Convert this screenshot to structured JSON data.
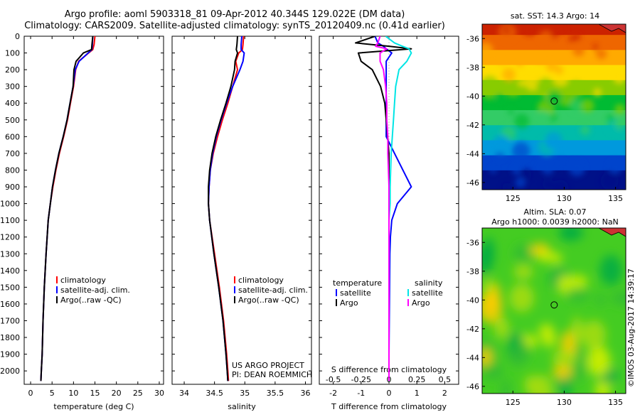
{
  "title": {
    "line1": "Argo profile: aoml 5903318_81 09-Apr-2012 40.344S 129.022E (DM data)",
    "line2": "Climatology: CARS2009. Satellite-adjusted climatology: synTS_20120409.nc (0.41d earlier)"
  },
  "chart_data": [
    {
      "type": "line",
      "name": "temperature-profile",
      "xlabel": "temperature (deg C)",
      "ylabel": "",
      "xlim": [
        -1.5,
        31
      ],
      "ylim": [
        2080,
        0
      ],
      "xticks": [
        0,
        5,
        10,
        15,
        20,
        25,
        30
      ],
      "xtick_labels": [
        "0",
        "5",
        "10",
        "15",
        "20",
        "25",
        "30"
      ],
      "yticks": [
        0,
        100,
        200,
        300,
        400,
        500,
        600,
        700,
        800,
        900,
        1000,
        1100,
        1200,
        1300,
        1400,
        1500,
        1600,
        1700,
        1800,
        1900,
        2000
      ],
      "ytick_labels": [
        "0",
        "100",
        "200",
        "300",
        "400",
        "500",
        "600",
        "700",
        "800",
        "900",
        "1000",
        "1100",
        "1200",
        "1300",
        "1400",
        "1500",
        "1600",
        "1700",
        "1800",
        "1900",
        "2000"
      ],
      "legend": [
        "climatology",
        "satellite-adj. clim.",
        "Argo(..raw -QC)"
      ],
      "legend_colors": [
        "#ff0000",
        "#0000ff",
        "#000000"
      ],
      "series": [
        {
          "name": "climatology",
          "color": "#ff0000",
          "x": [
            15.0,
            14.8,
            14.5,
            13.5,
            11.2,
            10.5,
            10.0,
            9.3,
            8.6,
            7.7,
            6.7,
            5.9,
            5.2,
            4.6,
            4.1,
            3.6,
            3.2,
            2.9,
            2.7,
            2.5,
            2.4
          ],
          "y": [
            0,
            50,
            80,
            100,
            150,
            200,
            300,
            400,
            500,
            600,
            700,
            800,
            900,
            1000,
            1100,
            1300,
            1500,
            1700,
            1900,
            2000,
            2060
          ]
        },
        {
          "name": "satellite-adj. clim.",
          "color": "#0000ff",
          "x": [
            14.5,
            14.4,
            14.3,
            13.4,
            11.3,
            10.4,
            9.9,
            9.2,
            8.5,
            7.6,
            6.6,
            5.8,
            5.1,
            4.6,
            4.1,
            3.6,
            3.2,
            2.9,
            2.7,
            2.5,
            2.4
          ],
          "y": [
            0,
            50,
            80,
            100,
            150,
            200,
            300,
            400,
            500,
            600,
            700,
            800,
            900,
            1000,
            1100,
            1300,
            1500,
            1700,
            1900,
            2000,
            2060
          ]
        },
        {
          "name": "Argo",
          "color": "#000000",
          "x": [
            14.5,
            14.3,
            14.2,
            12.3,
            10.6,
            10.1,
            9.9,
            9.2,
            8.5,
            7.6,
            6.6,
            5.8,
            5.1,
            4.6,
            4.1,
            3.6,
            3.2,
            2.9,
            2.7,
            2.5,
            2.4
          ],
          "y": [
            0,
            50,
            80,
            100,
            150,
            200,
            300,
            400,
            500,
            600,
            700,
            800,
            900,
            1000,
            1100,
            1300,
            1500,
            1700,
            1900,
            2000,
            2060
          ]
        }
      ]
    },
    {
      "type": "line",
      "name": "salinity-profile",
      "xlabel": "salinity",
      "ylabel": "",
      "xlim": [
        33.8,
        36.1
      ],
      "ylim": [
        2080,
        0
      ],
      "xticks": [
        34,
        34.5,
        35,
        35.5,
        36
      ],
      "xtick_labels": [
        "34",
        "34.5",
        "35",
        "35.5",
        "36"
      ],
      "legend": [
        "climatology",
        "satellite-adj. clim.",
        "Argo(..raw -QC)"
      ],
      "legend_colors": [
        "#ff0000",
        "#0000ff",
        "#000000"
      ],
      "annotation": [
        "US ARGO PROJECT",
        "PI: DEAN ROEMMICH"
      ],
      "series": [
        {
          "name": "climatology",
          "color": "#ff0000",
          "x": [
            34.98,
            34.97,
            34.96,
            34.9,
            34.85,
            34.88,
            34.8,
            34.72,
            34.63,
            34.55,
            34.48,
            34.43,
            34.41,
            34.4,
            34.42,
            34.5,
            34.58,
            34.65,
            34.7,
            34.72,
            34.73
          ],
          "y": [
            0,
            50,
            80,
            100,
            150,
            200,
            300,
            400,
            500,
            600,
            700,
            800,
            900,
            1000,
            1100,
            1300,
            1500,
            1700,
            1900,
            2000,
            2060
          ]
        },
        {
          "name": "satellite-adj. clim.",
          "color": "#0000ff",
          "x": [
            34.95,
            34.94,
            34.94,
            34.99,
            34.97,
            34.92,
            34.8,
            34.7,
            34.61,
            34.53,
            34.47,
            34.43,
            34.41,
            34.4,
            34.42,
            34.49,
            34.57,
            34.64,
            34.69,
            34.71,
            34.72
          ],
          "y": [
            0,
            50,
            80,
            100,
            150,
            200,
            300,
            400,
            500,
            600,
            700,
            800,
            900,
            1000,
            1100,
            1300,
            1500,
            1700,
            1900,
            2000,
            2060
          ]
        },
        {
          "name": "Argo",
          "color": "#000000",
          "x": [
            34.88,
            34.87,
            34.86,
            34.88,
            34.84,
            34.83,
            34.77,
            34.69,
            34.6,
            34.52,
            34.46,
            34.42,
            34.4,
            34.4,
            34.42,
            34.49,
            34.57,
            34.64,
            34.69,
            34.71,
            34.72
          ],
          "y": [
            0,
            50,
            80,
            100,
            150,
            200,
            300,
            400,
            500,
            600,
            700,
            800,
            900,
            1000,
            1100,
            1300,
            1500,
            1700,
            1900,
            2000,
            2060
          ]
        }
      ]
    },
    {
      "type": "line",
      "name": "difference-profile",
      "xlabel": "T difference from climatology",
      "xlabel_top": "S difference from climatology",
      "xlim": [
        -2.5,
        2.5
      ],
      "ylim": [
        2080,
        0
      ],
      "xticks": [
        -2,
        -1,
        0,
        1,
        2
      ],
      "xtick_labels": [
        "-2",
        "-1",
        "0",
        "1",
        "2"
      ],
      "s_ticks": [
        -0.5,
        -0.25,
        0,
        0.25,
        0.5
      ],
      "s_tick_labels": [
        "-0.5",
        "-0.25",
        "0",
        "0.25",
        "0.5"
      ],
      "legend_left_title": "temperature",
      "legend_right_title": "salinity",
      "legend_left": [
        "satellite",
        "Argo"
      ],
      "legend_left_colors": [
        "#0000ff",
        "#000000"
      ],
      "legend_right": [
        "satellite",
        "Argo"
      ],
      "legend_right_colors": [
        "#00e5e5",
        "#ff00ff"
      ],
      "series": [
        {
          "name": "T satellite",
          "color": "#0000ff",
          "x": [
            -0.5,
            -0.4,
            -0.2,
            -0.1,
            0.1,
            -0.1,
            -0.1,
            -0.1,
            -0.1,
            -0.1,
            -0.1,
            0.2,
            0.8,
            0.3,
            0.1,
            0.05,
            0.03,
            0.02,
            0.01,
            0,
            0
          ],
          "y": [
            0,
            40,
            60,
            75,
            100,
            150,
            200,
            300,
            400,
            500,
            600,
            700,
            900,
            1000,
            1100,
            1200,
            1300,
            1500,
            1700,
            1900,
            2060
          ]
        },
        {
          "name": "T Argo",
          "color": "#000000",
          "x": [
            -0.5,
            -1.2,
            0.0,
            0.8,
            -1.1,
            -1.0,
            -0.6,
            -0.3,
            -0.15,
            -0.1,
            -0.05,
            0,
            0,
            0,
            0,
            0,
            0,
            0,
            0,
            0,
            0
          ],
          "y": [
            0,
            40,
            60,
            75,
            100,
            150,
            200,
            300,
            400,
            500,
            600,
            700,
            900,
            1000,
            1100,
            1200,
            1300,
            1500,
            1700,
            1900,
            2060
          ]
        },
        {
          "name": "S satellite",
          "color": "#00e5e5",
          "x": [
            -0.03,
            0.05,
            0.12,
            0.18,
            0.2,
            0.16,
            0.09,
            0.06,
            0.05,
            0.04,
            0.03,
            0.02,
            0.01,
            0.01,
            0,
            0,
            0,
            0,
            0,
            0,
            0
          ],
          "y": [
            0,
            40,
            60,
            75,
            100,
            150,
            200,
            300,
            400,
            500,
            600,
            700,
            900,
            1000,
            1100,
            1200,
            1300,
            1500,
            1700,
            1900,
            2060
          ]
        },
        {
          "name": "S Argo",
          "color": "#ff00ff",
          "x": [
            -0.08,
            -0.1,
            -0.12,
            -0.02,
            -0.08,
            -0.08,
            -0.05,
            -0.03,
            -0.02,
            -0.02,
            -0.01,
            -0.01,
            0,
            0,
            0,
            0,
            0,
            0,
            0,
            0,
            0
          ],
          "y": [
            0,
            40,
            60,
            75,
            100,
            150,
            200,
            300,
            400,
            500,
            600,
            700,
            900,
            1000,
            1100,
            1200,
            1300,
            1500,
            1700,
            1900,
            2060
          ]
        }
      ]
    },
    {
      "type": "heatmap",
      "name": "sst-map",
      "title": "sat. SST: 14.3 Argo: 14",
      "xlim": [
        122,
        136
      ],
      "ylim": [
        -46.5,
        -35
      ],
      "xticks": [
        125,
        130,
        135
      ],
      "xtick_labels": [
        "125",
        "130",
        "135"
      ],
      "yticks": [
        -36,
        -38,
        -40,
        -42,
        -44,
        -46
      ],
      "ytick_labels": [
        "-36",
        "-38",
        "-40",
        "-42",
        "-44",
        "-46"
      ],
      "colors_north_to_south": [
        "#cc2200",
        "#ee6600",
        "#ffaa00",
        "#ffdd00",
        "#88cc00",
        "#00bb33",
        "#33cc66",
        "#00bbaa",
        "#0099dd",
        "#0044cc",
        "#001188"
      ],
      "marker_lon": 129.022,
      "marker_lat": -40.344
    },
    {
      "type": "heatmap",
      "name": "sla-map",
      "title_line1": "Altim. SLA: 0.07",
      "title_line2": "Argo h1000: 0.0039 h2000: NaN",
      "xlim": [
        122,
        136
      ],
      "ylim": [
        -46.5,
        -35
      ],
      "xticks": [
        125,
        130,
        135
      ],
      "xtick_labels": [
        "125",
        "130",
        "135"
      ],
      "yticks": [
        -36,
        -38,
        -40,
        -42,
        -44,
        -46
      ],
      "ytick_labels": [
        "-36",
        "-38",
        "-40",
        "-42",
        "-44",
        "-46"
      ],
      "base_color": "#44cc22",
      "blob_colors": [
        "#aadd11",
        "#ccee00",
        "#33bb33",
        "#00aa44",
        "#ffcc00"
      ],
      "marker_lon": 129.022,
      "marker_lat": -40.344
    }
  ],
  "credit": "©IMOS 03-Aug-2017 14:39:17",
  "colors": {
    "red": "#ff0000",
    "blue": "#0000ff",
    "black": "#000000",
    "cyan": "#00e5e5",
    "magenta": "#ff00ff"
  }
}
